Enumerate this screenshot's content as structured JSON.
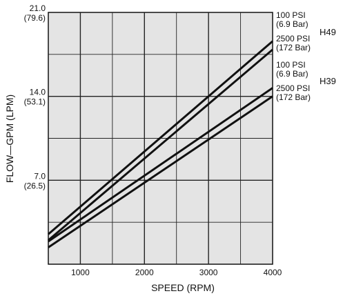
{
  "chart_data": {
    "type": "line",
    "xlabel": "SPEED (RPM)",
    "ylabel": "FLOW—GPM (LPM)",
    "xlim": [
      500,
      4000
    ],
    "ylim": [
      0,
      21
    ],
    "x_ticks": [
      {
        "value": 1000,
        "label": "1000"
      },
      {
        "value": 2000,
        "label": "2000"
      },
      {
        "value": 3000,
        "label": "3000"
      },
      {
        "value": 4000,
        "label": "4000"
      }
    ],
    "y_ticks": [
      {
        "value": 7,
        "label": "7.0",
        "sub": "(26.5)"
      },
      {
        "value": 14,
        "label": "14.0",
        "sub": "(53.1)"
      },
      {
        "value": 21,
        "label": "21.0",
        "sub": "(79.6)"
      }
    ],
    "grid": true,
    "series": [
      {
        "model": "H49",
        "pressure": "100 PSI",
        "pressure_metric": "(6.9 Bar)",
        "x": [
          500,
          4000
        ],
        "y": [
          2.5,
          18.6
        ]
      },
      {
        "model": "H49",
        "pressure": "2500 PSI",
        "pressure_metric": "(172 Bar)",
        "x": [
          500,
          4000
        ],
        "y": [
          2.0,
          17.9
        ]
      },
      {
        "model": "H39",
        "pressure": "100 PSI",
        "pressure_metric": "(6.9 Bar)",
        "x": [
          500,
          4000
        ],
        "y": [
          1.9,
          14.7
        ]
      },
      {
        "model": "H39",
        "pressure": "2500 PSI",
        "pressure_metric": "(172 Bar)",
        "x": [
          500,
          4000
        ],
        "y": [
          1.4,
          14.0
        ]
      }
    ],
    "models": [
      "H49",
      "H39"
    ]
  }
}
